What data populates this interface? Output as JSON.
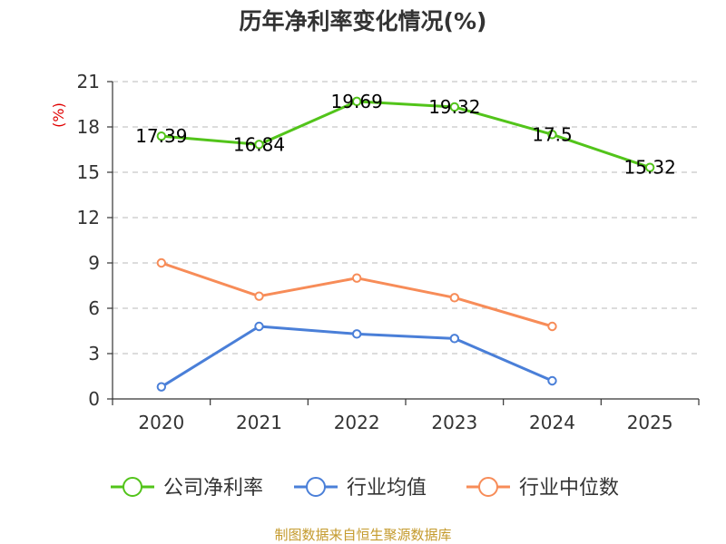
{
  "title": "历年净利率变化情况(%)",
  "source": "制图数据来自恒生聚源数据库",
  "chart_data": {
    "type": "line",
    "title": "历年净利率变化情况(%)",
    "ylabel": "(%)",
    "xlabel": "",
    "ylim": [
      0,
      21
    ],
    "yticks": [
      0,
      3,
      6,
      9,
      12,
      15,
      18,
      21
    ],
    "categories": [
      "2020",
      "2021",
      "2022",
      "2023",
      "2024",
      "2025"
    ],
    "grid": true,
    "legend_position": "bottom",
    "series": [
      {
        "name": "公司净利率",
        "color": "#52c41a",
        "values": [
          17.39,
          16.84,
          19.69,
          19.32,
          17.5,
          15.32
        ],
        "labels": [
          "17.39",
          "16.84",
          "19.69",
          "19.32",
          "17.5",
          "15.32"
        ],
        "show_labels": true
      },
      {
        "name": "行业均值",
        "color": "#4a7fd8",
        "values": [
          0.8,
          4.8,
          4.3,
          4.0,
          1.2,
          null
        ],
        "show_labels": false
      },
      {
        "name": "行业中位数",
        "color": "#f78c58",
        "values": [
          9.0,
          6.8,
          8.0,
          6.7,
          4.8,
          null
        ],
        "show_labels": false
      }
    ]
  }
}
